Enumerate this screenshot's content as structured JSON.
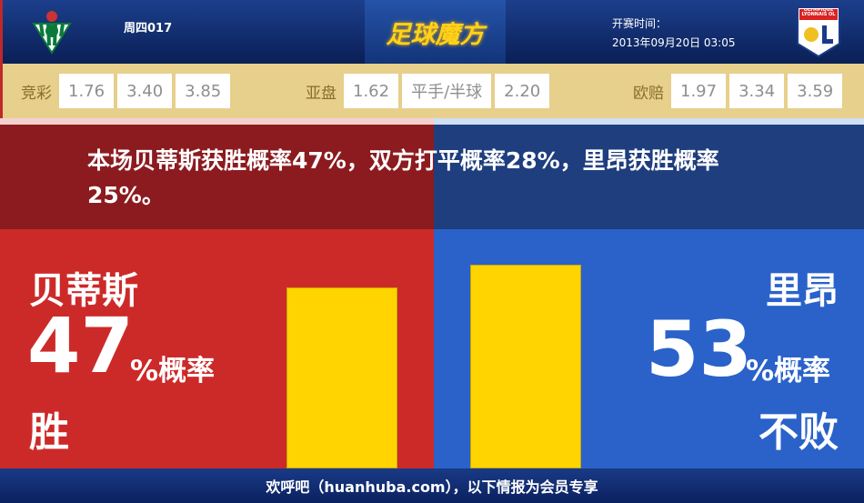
{
  "header": {
    "match_code": "周四017",
    "brand": "足球魔方",
    "kickoff_label": "开赛时间：",
    "kickoff_time": "2013年09月20日 03:05",
    "away_logo_text": "OLYMPIQUE LYONNAIS OL"
  },
  "odds": {
    "jingcai": {
      "label": "竞彩",
      "values": [
        "1.76",
        "3.40",
        "3.85"
      ]
    },
    "yapan": {
      "label": "亚盘",
      "values": [
        "1.62",
        "平手/半球",
        "2.20"
      ]
    },
    "oupei": {
      "label": "欧赔",
      "values": [
        "1.97",
        "3.34",
        "3.59"
      ]
    }
  },
  "summary": "本场贝蒂斯获胜概率47%，双方打平概率28%，里昂获胜概率25%。",
  "home": {
    "name": "贝蒂斯",
    "percent": 47,
    "percent_text": "47",
    "suffix": "%概率",
    "outcome": "胜"
  },
  "away": {
    "name": "里昂",
    "percent": 53,
    "percent_text": "53",
    "suffix": "%概率",
    "outcome": "不败"
  },
  "colors": {
    "home": "#cc2a29",
    "away": "#2a62c9",
    "bar": "#ffd400",
    "odds_bg": "#e7cf8c"
  },
  "footer": "欢呼吧（huanhuba.com），以下情报为会员专享"
}
